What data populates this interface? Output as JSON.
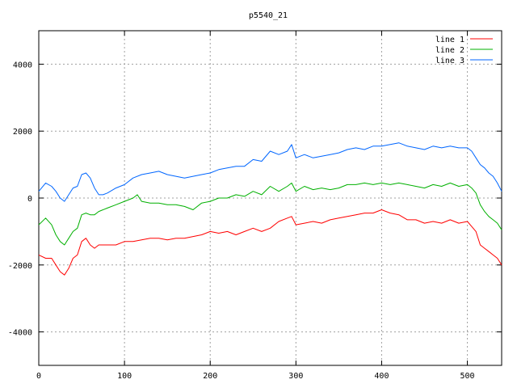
{
  "chart_data": {
    "type": "line",
    "title": "p5540_21",
    "xlabel": "",
    "ylabel": "",
    "xlim": [
      0,
      540
    ],
    "ylim": [
      -5000,
      5000
    ],
    "xticks": [
      0,
      100,
      200,
      300,
      400,
      500
    ],
    "yticks": [
      -4000,
      -2000,
      0,
      2000,
      4000
    ],
    "grid": true,
    "legend_position": "top-right",
    "series": [
      {
        "name": "line 1",
        "color": "#ff0000",
        "x": [
          0,
          8,
          15,
          20,
          25,
          30,
          35,
          40,
          45,
          50,
          55,
          60,
          65,
          70,
          80,
          90,
          100,
          110,
          120,
          130,
          140,
          150,
          160,
          170,
          180,
          190,
          200,
          210,
          220,
          230,
          240,
          250,
          260,
          270,
          280,
          290,
          295,
          300,
          310,
          320,
          330,
          340,
          350,
          360,
          370,
          380,
          390,
          400,
          410,
          420,
          430,
          440,
          450,
          460,
          470,
          480,
          490,
          500,
          505,
          510,
          515,
          520,
          525,
          530,
          535,
          540
        ],
        "y": [
          -1700,
          -1800,
          -1800,
          -2000,
          -2200,
          -2300,
          -2100,
          -1800,
          -1700,
          -1300,
          -1200,
          -1400,
          -1500,
          -1400,
          -1400,
          -1400,
          -1300,
          -1300,
          -1250,
          -1200,
          -1200,
          -1250,
          -1200,
          -1200,
          -1150,
          -1100,
          -1000,
          -1050,
          -1000,
          -1100,
          -1000,
          -900,
          -1000,
          -900,
          -700,
          -600,
          -550,
          -800,
          -750,
          -700,
          -750,
          -650,
          -600,
          -550,
          -500,
          -450,
          -450,
          -350,
          -450,
          -500,
          -650,
          -650,
          -750,
          -700,
          -750,
          -650,
          -750,
          -700,
          -850,
          -1000,
          -1400,
          -1500,
          -1600,
          -1700,
          -1800,
          -2000
        ]
      },
      {
        "name": "line 2",
        "color": "#00b000",
        "x": [
          0,
          8,
          15,
          20,
          25,
          30,
          35,
          40,
          45,
          50,
          55,
          60,
          65,
          70,
          80,
          90,
          100,
          110,
          115,
          120,
          130,
          140,
          150,
          160,
          170,
          180,
          190,
          200,
          210,
          220,
          230,
          240,
          250,
          260,
          270,
          280,
          290,
          295,
          300,
          310,
          320,
          330,
          340,
          350,
          360,
          370,
          380,
          390,
          400,
          410,
          420,
          430,
          440,
          450,
          460,
          470,
          480,
          490,
          500,
          505,
          510,
          515,
          520,
          525,
          530,
          535,
          540
        ],
        "y": [
          -800,
          -600,
          -800,
          -1100,
          -1300,
          -1400,
          -1200,
          -1000,
          -900,
          -500,
          -450,
          -500,
          -500,
          -400,
          -300,
          -200,
          -100,
          0,
          100,
          -100,
          -150,
          -150,
          -200,
          -200,
          -250,
          -350,
          -150,
          -100,
          0,
          0,
          100,
          50,
          200,
          100,
          350,
          200,
          350,
          450,
          200,
          350,
          250,
          300,
          250,
          300,
          400,
          400,
          450,
          400,
          450,
          400,
          450,
          400,
          350,
          300,
          400,
          350,
          450,
          350,
          400,
          300,
          150,
          -200,
          -400,
          -550,
          -650,
          -750,
          -950
        ]
      },
      {
        "name": "line 3",
        "color": "#0066ff",
        "x": [
          0,
          8,
          15,
          20,
          25,
          30,
          35,
          40,
          45,
          50,
          55,
          60,
          65,
          70,
          75,
          80,
          90,
          100,
          110,
          120,
          130,
          140,
          150,
          160,
          170,
          180,
          190,
          200,
          210,
          220,
          230,
          240,
          250,
          260,
          270,
          280,
          290,
          295,
          300,
          310,
          320,
          330,
          340,
          350,
          360,
          370,
          380,
          390,
          400,
          410,
          420,
          430,
          440,
          450,
          460,
          470,
          480,
          490,
          500,
          505,
          510,
          515,
          520,
          525,
          530,
          535,
          540
        ],
        "y": [
          200,
          450,
          350,
          200,
          0,
          -100,
          100,
          300,
          350,
          700,
          750,
          600,
          300,
          100,
          100,
          150,
          300,
          400,
          600,
          700,
          750,
          800,
          700,
          650,
          600,
          650,
          700,
          750,
          850,
          900,
          950,
          950,
          1150,
          1100,
          1400,
          1300,
          1400,
          1600,
          1200,
          1300,
          1200,
          1250,
          1300,
          1350,
          1450,
          1500,
          1450,
          1550,
          1550,
          1600,
          1650,
          1550,
          1500,
          1450,
          1550,
          1500,
          1550,
          1500,
          1500,
          1400,
          1200,
          1000,
          900,
          750,
          650,
          450,
          200
        ]
      }
    ]
  }
}
